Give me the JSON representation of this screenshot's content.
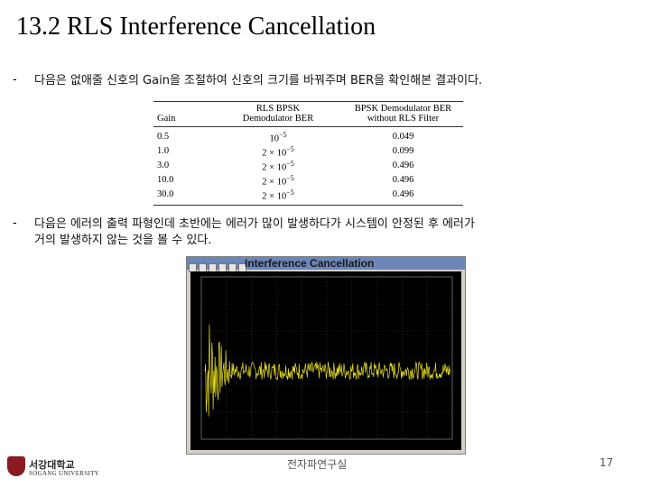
{
  "slide": {
    "title": "13.2 RLS Interference Cancellation",
    "bullet_marker": "-",
    "bullet1": "다음은 없애줄 신호의 Gain을 조절하여 신호의 크기를 바꿔주며 BER을 확인해본 결과이다.",
    "bullet2_line1": "다음은 에러의 출력 파형인데 초반에는 에러가 많이 발생하다가 시스템이 안정된 후 에러가",
    "bullet2_line2": "거의 발생하지 않는 것을 볼 수 있다."
  },
  "table": {
    "headers": {
      "gain": "Gain",
      "rls_line1": "RLS BPSK",
      "rls_line2": "Demodulator BER",
      "bpsk_line1": "BPSK Demodulator BER",
      "bpsk_line2": "without RLS Filter"
    },
    "rows": [
      {
        "gain": "0.5",
        "rls_mant": "10",
        "rls_exp": "−5",
        "bpsk": "0.049"
      },
      {
        "gain": "1.0",
        "rls_mant": "2 × 10",
        "rls_exp": "−5",
        "bpsk": "0.099"
      },
      {
        "gain": "3.0",
        "rls_mant": "2 × 10",
        "rls_exp": "−5",
        "bpsk": "0.496"
      },
      {
        "gain": "10.0",
        "rls_mant": "2 × 10",
        "rls_exp": "−5",
        "bpsk": "0.496"
      },
      {
        "gain": "30.0",
        "rls_mant": "2 × 10",
        "rls_exp": "−5",
        "bpsk": "0.496"
      }
    ]
  },
  "scope_window": {
    "title": "Interference Cancellation",
    "background_color": "#000000",
    "trace_color": "#e8e020",
    "grid_color": "#3a3a3a"
  },
  "footer": {
    "university_korean": "서강대학교",
    "university_english": "SOGANG UNIVERSITY",
    "center_text": "전자파연구실",
    "page_number": "17"
  }
}
